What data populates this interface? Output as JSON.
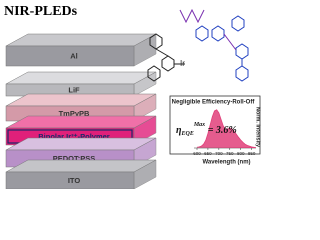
{
  "title": "NIR-PLEDs",
  "layers": [
    "Al",
    "LiF",
    "TmPyPB",
    "Bipolar Ir³⁺-Polymer",
    "PEDOT:PSS",
    "ITO"
  ],
  "structure_label": "Ir",
  "chart_data": {
    "type": "area",
    "title": "Negligible Efficiency-Roll-Off",
    "x_label": "Wavelength (nm)",
    "y_label": "Norm. Intensity",
    "annotation": {
      "symbol": "η",
      "sub": "EQE",
      "sup": "Max",
      "text": " = 3.6%"
    },
    "x": [
      600,
      610,
      620,
      630,
      640,
      650,
      660,
      670,
      680,
      690,
      700,
      710,
      720,
      730,
      740,
      750,
      760,
      770,
      780,
      790,
      800,
      810,
      820,
      830,
      840,
      850,
      860,
      870
    ],
    "values": [
      0.02,
      0.03,
      0.05,
      0.1,
      0.2,
      0.38,
      0.6,
      0.82,
      0.97,
      1.0,
      0.92,
      0.75,
      0.58,
      0.5,
      0.5,
      0.52,
      0.5,
      0.44,
      0.36,
      0.28,
      0.21,
      0.15,
      0.1,
      0.07,
      0.05,
      0.03,
      0.02,
      0.01
    ],
    "color": "#e0407a",
    "xlim": [
      600,
      870
    ],
    "ylim": [
      0,
      1.1
    ],
    "xticks": [
      600,
      650,
      700,
      750,
      800,
      850
    ]
  }
}
